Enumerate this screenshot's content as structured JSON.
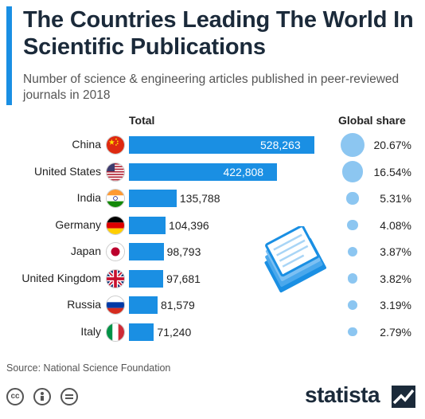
{
  "title": "The Countries Leading The World In Scientific Publications",
  "subtitle": "Number of science & engineering articles published in peer-reviewed journals in 2018",
  "columns": {
    "total": "Total",
    "share": "Global share"
  },
  "source": "Source: National Science Foundation",
  "brand": "statista",
  "colors": {
    "bar": "#1a8fe3",
    "bubble": "#8cc6f1",
    "accent": "#1a8fe3",
    "title": "#1b2a3a"
  },
  "chart_data": {
    "type": "bar",
    "orientation": "horizontal",
    "categories": [
      "China",
      "United States",
      "India",
      "Germany",
      "Japan",
      "United Kingdom",
      "Russia",
      "Italy"
    ],
    "values": [
      528263,
      422808,
      135788,
      104396,
      98793,
      97681,
      81579,
      71240
    ],
    "value_labels": [
      "528,263",
      "422,808",
      "135,788",
      "104,396",
      "98,793",
      "97,681",
      "81,579",
      "71,240"
    ],
    "global_share": [
      20.67,
      16.54,
      5.31,
      4.08,
      3.87,
      3.82,
      3.19,
      2.79
    ],
    "global_share_labels": [
      "20.67%",
      "16.54%",
      "5.31%",
      "4.08%",
      "3.87%",
      "3.82%",
      "3.19%",
      "2.79%"
    ],
    "flags": [
      "china-flag",
      "usa-flag",
      "india-flag",
      "germany-flag",
      "japan-flag",
      "uk-flag",
      "russia-flag",
      "italy-flag"
    ],
    "xlim": [
      0,
      528263
    ],
    "grid": false,
    "legend": "none"
  }
}
